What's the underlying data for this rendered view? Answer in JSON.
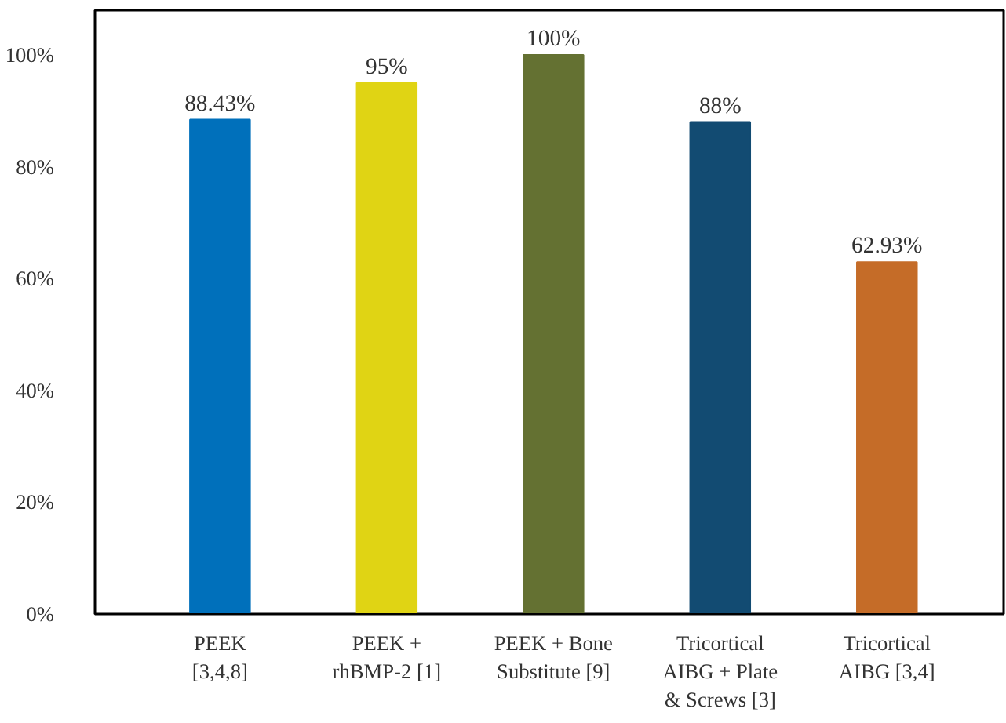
{
  "chart_data": {
    "type": "bar",
    "categories": [
      "PEEK\n[3,4,8]",
      "PEEK +\nrhBMP-2 [1]",
      "PEEK + Bone\nSubstitute [9]",
      "Tricortical\nAIBG + Plate\n& Screws [3]",
      "Tricortical\nAIBG [3,4]"
    ],
    "values": [
      88.43,
      95,
      100,
      88,
      62.93
    ],
    "colors": [
      "#0070bb",
      "#e0d414",
      "#647132",
      "#124b72",
      "#c56c28"
    ],
    "value_labels": [
      "88.43%",
      "95%",
      "100%",
      "88%",
      "62.93%"
    ],
    "ylim": [
      0,
      108
    ],
    "yticks": [
      {
        "value": 0,
        "label": "0%"
      },
      {
        "value": 20,
        "label": "20%"
      },
      {
        "value": 40,
        "label": "40%"
      },
      {
        "value": 60,
        "label": "60%"
      },
      {
        "value": 80,
        "label": "80%"
      },
      {
        "value": 100,
        "label": "100%"
      }
    ],
    "grid": false
  }
}
